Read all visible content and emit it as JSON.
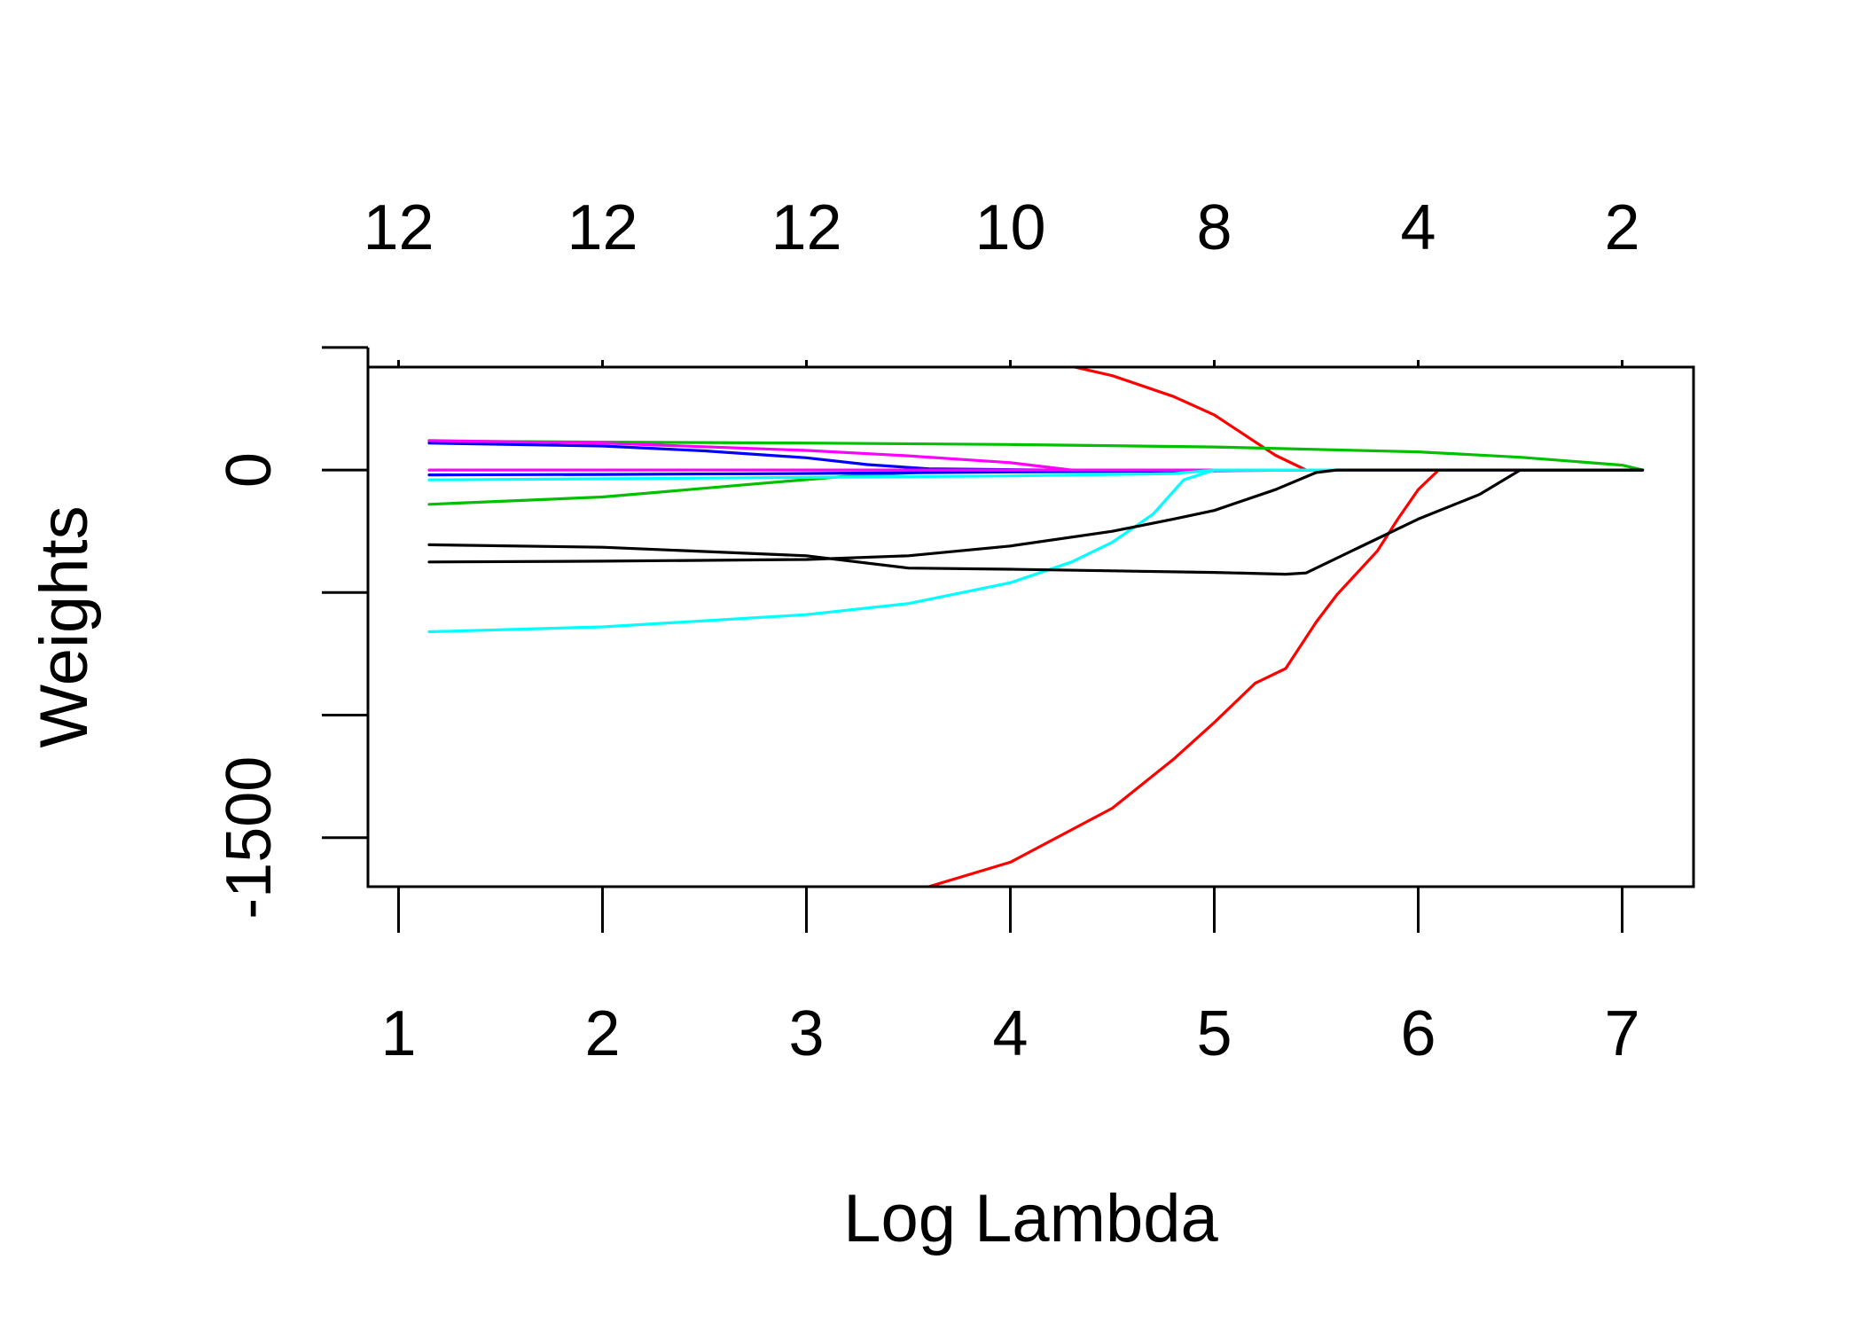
{
  "chart_data": {
    "type": "line",
    "title": "",
    "xlabel": "Log Lambda",
    "ylabel": "Weights",
    "xlim": [
      0.85,
      7.35
    ],
    "ylim": [
      -1700,
      420
    ],
    "x_ticks": [
      1,
      2,
      3,
      4,
      5,
      6,
      7
    ],
    "x_tick_labels": [
      "1",
      "2",
      "3",
      "4",
      "5",
      "6",
      "7"
    ],
    "y_ticks": [
      -1500,
      -1000,
      -500,
      0,
      500
    ],
    "y_tick_labels": [
      "-1500",
      "",
      "",
      "0",
      ""
    ],
    "top_ticks": [
      1,
      2,
      3,
      4,
      5,
      6,
      7
    ],
    "top_tick_labels": [
      "12",
      "12",
      "12",
      "10",
      "8",
      "4",
      "2"
    ],
    "grid": false,
    "series": [
      {
        "name": "coef-1",
        "color": "#FF0000",
        "points": [
          [
            1.15,
            600
          ],
          [
            2.0,
            590
          ],
          [
            3.0,
            565
          ],
          [
            3.5,
            535
          ],
          [
            4.0,
            480
          ],
          [
            4.5,
            385
          ],
          [
            4.8,
            300
          ],
          [
            5.0,
            225
          ],
          [
            5.2,
            115
          ],
          [
            5.3,
            60
          ],
          [
            5.45,
            0
          ],
          [
            7.1,
            0
          ]
        ]
      },
      {
        "name": "coef-2",
        "color": "#FF0000",
        "points": [
          [
            1.15,
            -1890
          ],
          [
            2.0,
            -1870
          ],
          [
            3.0,
            -1810
          ],
          [
            3.4,
            -1750
          ],
          [
            4.0,
            -1600
          ],
          [
            4.5,
            -1380
          ],
          [
            4.8,
            -1180
          ],
          [
            5.0,
            -1030
          ],
          [
            5.2,
            -870
          ],
          [
            5.35,
            -810
          ],
          [
            5.5,
            -620
          ],
          [
            5.6,
            -510
          ],
          [
            5.7,
            -420
          ],
          [
            5.8,
            -330
          ],
          [
            5.9,
            -200
          ],
          [
            6.0,
            -80
          ],
          [
            6.1,
            0
          ],
          [
            7.1,
            0
          ]
        ]
      },
      {
        "name": "coef-3",
        "color": "#00C000",
        "points": [
          [
            1.15,
            118
          ],
          [
            2.0,
            114
          ],
          [
            3.0,
            110
          ],
          [
            4.0,
            104
          ],
          [
            5.0,
            94
          ],
          [
            6.0,
            74
          ],
          [
            6.5,
            52
          ],
          [
            7.0,
            20
          ],
          [
            7.1,
            0
          ]
        ]
      },
      {
        "name": "coef-4",
        "color": "#00C000",
        "points": [
          [
            1.15,
            -140
          ],
          [
            2.0,
            -110
          ],
          [
            2.7,
            -60
          ],
          [
            3.2,
            -25
          ],
          [
            3.6,
            -8
          ],
          [
            4.0,
            -2
          ],
          [
            4.6,
            0
          ],
          [
            7.1,
            0
          ]
        ]
      },
      {
        "name": "coef-5",
        "color": "#0000FF",
        "points": [
          [
            1.15,
            110
          ],
          [
            2.0,
            98
          ],
          [
            2.5,
            78
          ],
          [
            3.0,
            50
          ],
          [
            3.3,
            22
          ],
          [
            3.6,
            5
          ],
          [
            4.2,
            0
          ],
          [
            7.1,
            0
          ]
        ]
      },
      {
        "name": "coef-6",
        "color": "#0000FF",
        "points": [
          [
            1.15,
            -20
          ],
          [
            2.0,
            -18
          ],
          [
            3.0,
            -14
          ],
          [
            4.0,
            -8
          ],
          [
            5.0,
            -3
          ],
          [
            5.5,
            0
          ],
          [
            7.1,
            0
          ]
        ]
      },
      {
        "name": "coef-7",
        "color": "#FF00FF",
        "points": [
          [
            1.15,
            120
          ],
          [
            2.0,
            110
          ],
          [
            3.0,
            80
          ],
          [
            3.5,
            58
          ],
          [
            4.0,
            30
          ],
          [
            4.3,
            0
          ],
          [
            7.1,
            0
          ]
        ]
      },
      {
        "name": "coef-8",
        "color": "#FF00FF",
        "points": [
          [
            1.15,
            0
          ],
          [
            7.1,
            0
          ]
        ]
      },
      {
        "name": "coef-9",
        "color": "#00FFFF",
        "points": [
          [
            1.15,
            -660
          ],
          [
            2.0,
            -640
          ],
          [
            3.0,
            -590
          ],
          [
            3.5,
            -545
          ],
          [
            4.0,
            -460
          ],
          [
            4.3,
            -375
          ],
          [
            4.5,
            -295
          ],
          [
            4.7,
            -180
          ],
          [
            4.85,
            -40
          ],
          [
            5.0,
            0
          ],
          [
            7.1,
            0
          ]
        ]
      },
      {
        "name": "coef-10",
        "color": "#00FFFF",
        "points": [
          [
            1.15,
            -40
          ],
          [
            2.0,
            -36
          ],
          [
            3.0,
            -30
          ],
          [
            4.0,
            -24
          ],
          [
            4.8,
            -15
          ],
          [
            5.0,
            0
          ],
          [
            7.1,
            0
          ]
        ]
      },
      {
        "name": "coef-11",
        "color": "#000000",
        "points": [
          [
            1.15,
            -305
          ],
          [
            2.0,
            -315
          ],
          [
            3.0,
            -350
          ],
          [
            3.5,
            -400
          ],
          [
            4.0,
            -405
          ],
          [
            5.0,
            -418
          ],
          [
            5.35,
            -425
          ],
          [
            5.45,
            -420
          ],
          [
            5.7,
            -320
          ],
          [
            6.0,
            -200
          ],
          [
            6.3,
            -100
          ],
          [
            6.5,
            0
          ],
          [
            7.1,
            0
          ]
        ]
      },
      {
        "name": "coef-12",
        "color": "#000000",
        "points": [
          [
            1.15,
            -375
          ],
          [
            2.0,
            -372
          ],
          [
            3.0,
            -365
          ],
          [
            3.5,
            -350
          ],
          [
            4.0,
            -310
          ],
          [
            4.5,
            -250
          ],
          [
            4.8,
            -200
          ],
          [
            5.0,
            -165
          ],
          [
            5.3,
            -80
          ],
          [
            5.5,
            -10
          ],
          [
            5.6,
            0
          ],
          [
            7.1,
            0
          ]
        ]
      }
    ]
  }
}
